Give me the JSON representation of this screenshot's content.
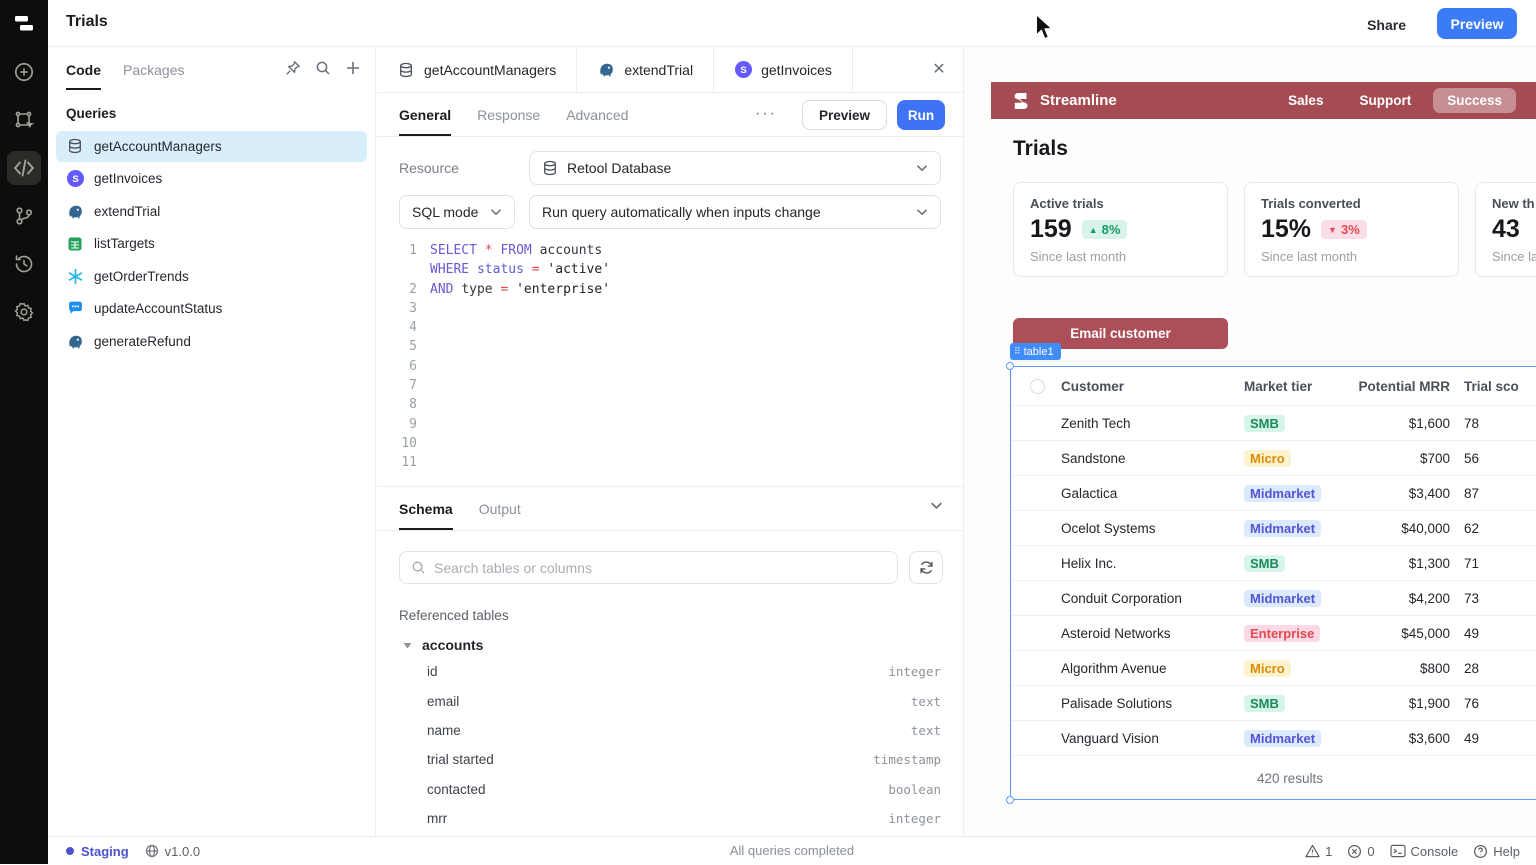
{
  "colors": {
    "accent_blue": "#3b7bf6",
    "run_blue": "#3e74f3",
    "maroon": "#a54b53",
    "button_maroon": "#ad4f58",
    "selection_blue": "#5c9dfd",
    "selected_query_bg": "#d8eefa",
    "staging_indigo": "#4c51cf",
    "badge_up_green": "#149c67",
    "badge_down_red": "#e5484d"
  },
  "header": {
    "title": "Trials",
    "share_label": "Share",
    "preview_label": "Preview"
  },
  "sidebar": {
    "icons": [
      "retool-logo",
      "plus-circle",
      "select-transform",
      "code",
      "git-branch",
      "history",
      "settings"
    ]
  },
  "queries_panel": {
    "tabs": [
      {
        "label": "Code",
        "active": true
      },
      {
        "label": "Packages",
        "active": false
      }
    ],
    "section_title": "Queries",
    "items": [
      {
        "label": "getAccountManagers",
        "icon": "database",
        "selected": true
      },
      {
        "label": "getInvoices",
        "icon": "stripe",
        "selected": false
      },
      {
        "label": "extendTrial",
        "icon": "postgres",
        "selected": false
      },
      {
        "label": "listTargets",
        "icon": "sheets",
        "selected": false
      },
      {
        "label": "getOrderTrends",
        "icon": "snowflake",
        "selected": false
      },
      {
        "label": "updateAccountStatus",
        "icon": "chat",
        "selected": false
      },
      {
        "label": "generateRefund",
        "icon": "postgres",
        "selected": false
      }
    ]
  },
  "editor": {
    "tabs": [
      {
        "label": "getAccountManagers",
        "icon": "database",
        "active": true
      },
      {
        "label": "extendTrial",
        "icon": "postgres",
        "active": false
      },
      {
        "label": "getInvoices",
        "icon": "stripe",
        "active": false
      }
    ],
    "subtabs": [
      {
        "label": "General",
        "active": true
      },
      {
        "label": "Response",
        "active": false
      },
      {
        "label": "Advanced",
        "active": false
      }
    ],
    "more_label": "···",
    "preview_label": "Preview",
    "run_label": "Run",
    "resource_label": "Resource",
    "resource_value": "Retool Database",
    "mode_value": "SQL mode",
    "run_behavior": "Run query automatically when inputs change",
    "code": {
      "lines": [
        {
          "n": "1",
          "tokens": [
            [
              "kw",
              "SELECT "
            ],
            [
              "op",
              "* "
            ],
            [
              "kw",
              "FROM "
            ],
            [
              "id",
              "accounts"
            ]
          ]
        },
        {
          "n": "",
          "tokens": [
            [
              "kw",
              "WHERE "
            ],
            [
              "vr",
              "status "
            ],
            [
              "op",
              "= "
            ],
            [
              "st",
              "'active'"
            ]
          ]
        },
        {
          "n": "2",
          "tokens": [
            [
              "kw",
              "AND "
            ],
            [
              "id",
              "type "
            ],
            [
              "op",
              "= "
            ],
            [
              "st",
              "'enterprise'"
            ]
          ]
        },
        {
          "n": "3",
          "tokens": []
        },
        {
          "n": "4",
          "tokens": []
        },
        {
          "n": "5",
          "tokens": []
        },
        {
          "n": "6",
          "tokens": []
        },
        {
          "n": "7",
          "tokens": []
        },
        {
          "n": "8",
          "tokens": []
        },
        {
          "n": "9",
          "tokens": []
        },
        {
          "n": "10",
          "tokens": []
        },
        {
          "n": "11",
          "tokens": []
        }
      ]
    },
    "schema": {
      "tabs": [
        {
          "label": "Schema",
          "active": true
        },
        {
          "label": "Output",
          "active": false
        }
      ],
      "search_placeholder": "Search tables or columns",
      "referenced_label": "Referenced tables",
      "table_name": "accounts",
      "fields": [
        {
          "name": "id",
          "type": "integer"
        },
        {
          "name": "email",
          "type": "text"
        },
        {
          "name": "name",
          "type": "text"
        },
        {
          "name": "trial started",
          "type": "timestamp"
        },
        {
          "name": "contacted",
          "type": "boolean"
        },
        {
          "name": "mrr",
          "type": "integer"
        }
      ]
    }
  },
  "statusbar": {
    "env": "Staging",
    "version": "v1.0.0",
    "center": "All queries completed",
    "warnings": "1",
    "errors": "0",
    "console_label": "Console",
    "help_label": "Help"
  },
  "app": {
    "brand": "Streamline",
    "nav": [
      {
        "label": "Sales",
        "active": false
      },
      {
        "label": "Support",
        "active": false
      },
      {
        "label": "Success",
        "active": true
      }
    ],
    "title": "Trials",
    "stats": [
      {
        "label": "Active trials",
        "value": "159",
        "delta": "8%",
        "dir": "up",
        "sub": "Since last month"
      },
      {
        "label": "Trials converted",
        "value": "15%",
        "delta": "3%",
        "dir": "down",
        "sub": "Since last month"
      },
      {
        "label": "New th",
        "value": "43",
        "delta": "",
        "dir": "",
        "sub": "Since la"
      }
    ],
    "email_button": "Email customer",
    "widget_tag": "table1",
    "table": {
      "columns": [
        "Customer",
        "Market tier",
        "Potential MRR",
        "Trial sco"
      ],
      "rows": [
        {
          "customer": "Zenith Tech",
          "tier": "SMB",
          "mrr": "$1,600",
          "score": "78"
        },
        {
          "customer": "Sandstone",
          "tier": "Micro",
          "mrr": "$700",
          "score": "56"
        },
        {
          "customer": "Galactica",
          "tier": "Midmarket",
          "mrr": "$3,400",
          "score": "87"
        },
        {
          "customer": "Ocelot Systems",
          "tier": "Midmarket",
          "mrr": "$40,000",
          "score": "62"
        },
        {
          "customer": "Helix Inc.",
          "tier": "SMB",
          "mrr": "$1,300",
          "score": "71"
        },
        {
          "customer": "Conduit Corporation",
          "tier": "Midmarket",
          "mrr": "$4,200",
          "score": "73"
        },
        {
          "customer": "Asteroid Networks",
          "tier": "Enterprise",
          "mrr": "$45,000",
          "score": "49"
        },
        {
          "customer": "Algorithm Avenue",
          "tier": "Micro",
          "mrr": "$800",
          "score": "28"
        },
        {
          "customer": "Palisade Solutions",
          "tier": "SMB",
          "mrr": "$1,900",
          "score": "76"
        },
        {
          "customer": "Vanguard Vision",
          "tier": "Midmarket",
          "mrr": "$3,600",
          "score": "49"
        }
      ],
      "footer": "420 results"
    }
  }
}
